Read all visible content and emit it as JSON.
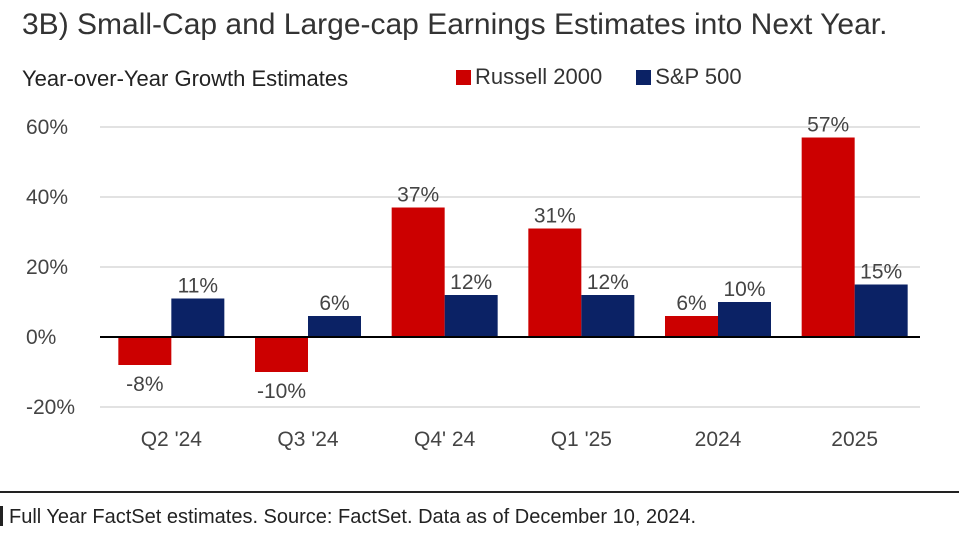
{
  "chart_data": {
    "type": "bar",
    "title": "3B) Small-Cap and Large-cap Earnings Estimates into Next Year.",
    "ylabel": "Year-over-Year  Growth Estimates",
    "categories": [
      "Q2 '24",
      "Q3 '24",
      "Q4' 24",
      "Q1 '25",
      "2024",
      "2025"
    ],
    "series": [
      {
        "name": "Russell 2000",
        "color": "#cc0000",
        "values": [
          -8,
          -10,
          37,
          31,
          6,
          57
        ],
        "labels": [
          "-8%",
          "-10%",
          "37%",
          "31%",
          "6%",
          "57%"
        ]
      },
      {
        "name": "S&P 500",
        "color": "#0b2265",
        "values": [
          11,
          6,
          12,
          12,
          10,
          15
        ],
        "labels": [
          "11%",
          "6%",
          "12%",
          "12%",
          "10%",
          "15%"
        ]
      }
    ],
    "ylim": [
      -20,
      60
    ],
    "yticks": [
      60,
      40,
      20,
      0,
      -20
    ],
    "ytick_labels": [
      "60%",
      "40%",
      "20%",
      "0%",
      "-20%"
    ],
    "grid": true,
    "legend": "top"
  },
  "source": "Full Year FactSet estimates. Source: FactSet. Data as of December 10, 2024."
}
